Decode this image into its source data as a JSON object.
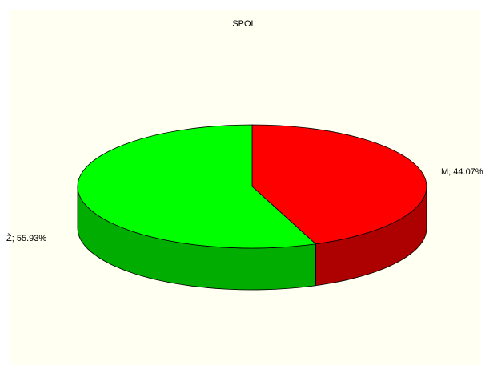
{
  "chart_data": {
    "type": "pie",
    "title": "SPOL",
    "categories": [
      "M",
      "Ž"
    ],
    "values": [
      44.07,
      55.93
    ],
    "value_labels": [
      "M; 44.07%",
      "Ž; 55.93%"
    ],
    "colors": [
      "#ff0000",
      "#00ff00"
    ]
  }
}
